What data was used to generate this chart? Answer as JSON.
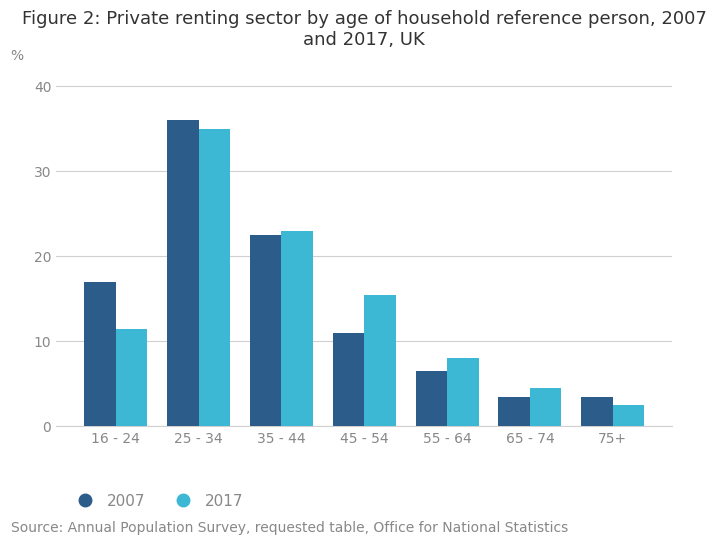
{
  "title": "Figure 2: Private renting sector by age of household reference person, 2007\nand 2017, UK",
  "categories": [
    "16 - 24",
    "25 - 34",
    "35 - 44",
    "45 - 54",
    "55 - 64",
    "65 - 74",
    "75+"
  ],
  "values_2007": [
    17,
    36,
    22.5,
    11,
    6.5,
    3.5,
    3.5
  ],
  "values_2017": [
    11.5,
    35,
    23,
    15.5,
    8,
    4.5,
    2.5
  ],
  "color_2007": "#2b5c8a",
  "color_2017": "#3db8d4",
  "ylabel": "%",
  "ylim": [
    0,
    42
  ],
  "yticks": [
    0,
    10,
    20,
    30,
    40
  ],
  "legend_labels": [
    "2007",
    "2017"
  ],
  "source_text": "Source: Annual Population Survey, requested table, Office for National Statistics",
  "bar_width": 0.38,
  "title_fontsize": 13,
  "axis_fontsize": 10.5,
  "tick_fontsize": 10,
  "legend_fontsize": 11,
  "source_fontsize": 10,
  "background_color": "#ffffff",
  "grid_color": "#d0d0d0",
  "text_color": "#888888",
  "source_color": "#888888"
}
